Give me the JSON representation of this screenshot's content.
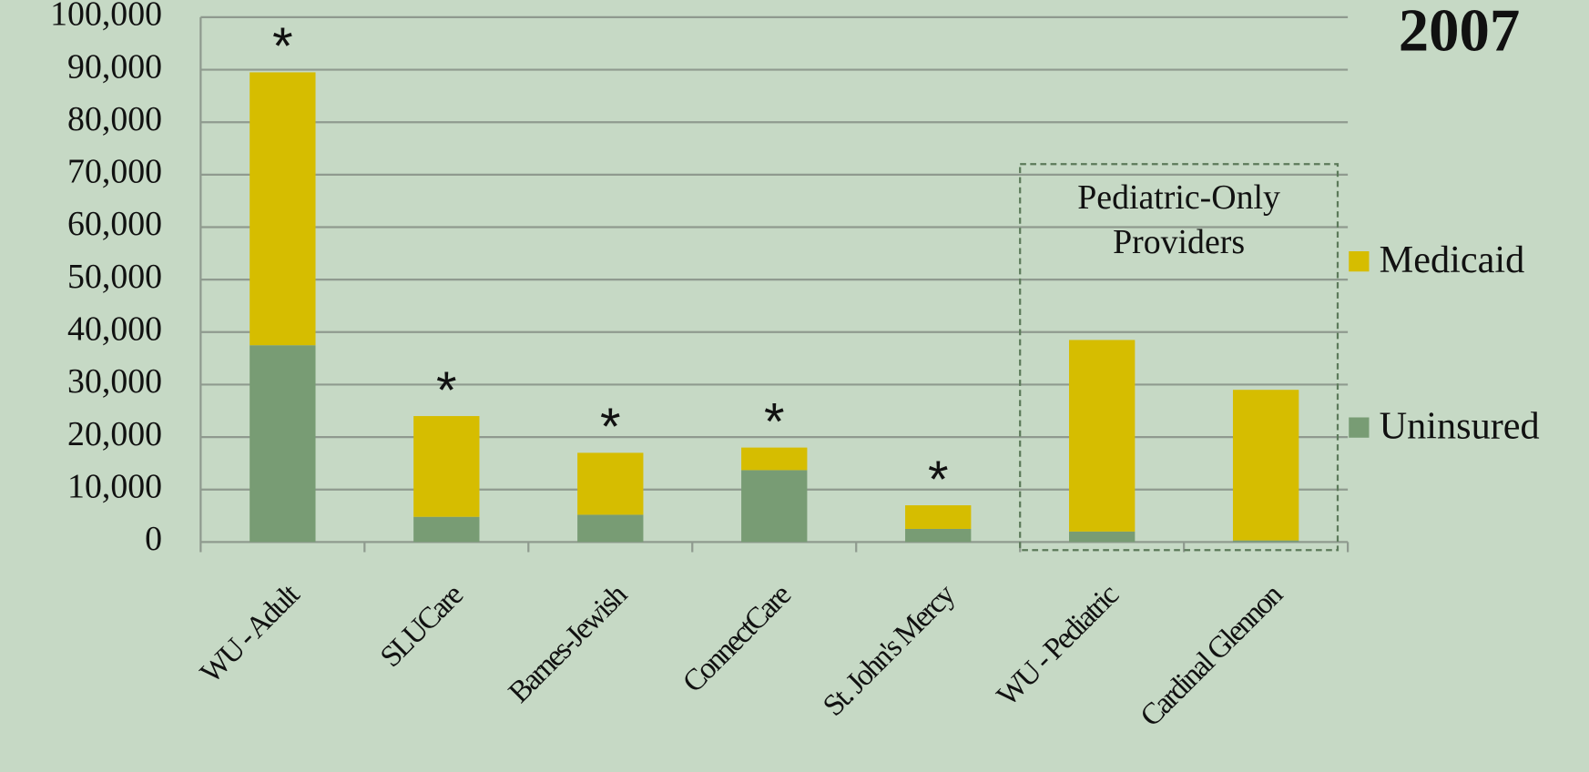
{
  "chart_data": {
    "type": "stacked_bar",
    "title": "2007",
    "categories": [
      "WU - Adult",
      "SLUCare",
      "Barnes-Jewish",
      "ConnectCare",
      "St. John's Mercy",
      "WU - Pediatric",
      "Cardinal Glennon"
    ],
    "series": [
      {
        "name": "Uninsured",
        "color": "#789c74",
        "values": [
          37500,
          4800,
          5200,
          13700,
          2500,
          2000,
          300
        ]
      },
      {
        "name": "Medicaid",
        "color": "#d6bd00",
        "values": [
          52000,
          19200,
          11800,
          4300,
          4500,
          36500,
          28700
        ]
      }
    ],
    "star_labels": [
      "*",
      "*",
      "*",
      "*",
      "*",
      null,
      null
    ],
    "box_label": [
      "Pediatric-Only",
      "Providers"
    ],
    "ylim": [
      0,
      100000
    ],
    "yticks": [
      0,
      {
        "value": 10000,
        "label": "10,000"
      },
      {
        "value": 20000,
        "label": "20,000"
      },
      {
        "value": 30000,
        "label": "30,000"
      },
      {
        "value": 40000,
        "label": "40,000"
      },
      {
        "value": 50000,
        "label": "50,000"
      },
      {
        "value": 60000,
        "label": "60,000"
      },
      {
        "value": 70000,
        "label": "70,000"
      },
      {
        "value": 80000,
        "label": "80,000"
      },
      {
        "value": 90000,
        "label": "90,000"
      },
      {
        "value": 100000,
        "label": "100,000"
      }
    ],
    "grid": true,
    "legend": "right"
  }
}
